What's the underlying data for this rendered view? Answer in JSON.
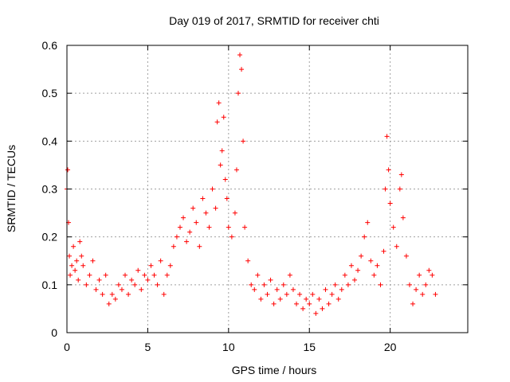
{
  "chart_data": {
    "type": "scatter",
    "title": "Day 019 of 2017, SRMTID for receiver chti",
    "xlabel": "GPS time / hours",
    "ylabel": "SRMTID / TECUs",
    "xlim": [
      0,
      24.8
    ],
    "ylim": [
      0,
      0.6
    ],
    "xticks": [
      0,
      5,
      10,
      15,
      20
    ],
    "xtick_labels": [
      "0",
      "5",
      "10",
      "15",
      "20"
    ],
    "yticks": [
      0,
      0.1,
      0.2,
      0.3,
      0.4,
      0.5,
      0.6
    ],
    "ytick_labels": [
      "0",
      "0.1",
      "0.2",
      "0.3",
      "0.4",
      "0.5",
      "0.6"
    ],
    "grid": true,
    "marker": "+",
    "color": "#ff0000",
    "series": [
      {
        "name": "SRMTID",
        "x": [
          0.0,
          0.05,
          0.1,
          0.15,
          0.2,
          0.3,
          0.4,
          0.5,
          0.6,
          0.7,
          0.8,
          0.9,
          1.0,
          1.2,
          1.4,
          1.6,
          1.8,
          2.0,
          2.2,
          2.4,
          2.6,
          2.8,
          3.0,
          3.2,
          3.4,
          3.6,
          3.8,
          4.0,
          4.2,
          4.4,
          4.6,
          4.8,
          5.0,
          5.2,
          5.4,
          5.6,
          5.8,
          6.0,
          6.2,
          6.4,
          6.6,
          6.8,
          7.0,
          7.2,
          7.4,
          7.6,
          7.8,
          8.0,
          8.2,
          8.4,
          8.6,
          8.8,
          9.0,
          9.2,
          9.3,
          9.4,
          9.5,
          9.6,
          9.7,
          9.8,
          9.9,
          10.0,
          10.2,
          10.4,
          10.5,
          10.6,
          10.7,
          10.8,
          10.9,
          11.0,
          11.2,
          11.4,
          11.6,
          11.8,
          12.0,
          12.2,
          12.4,
          12.6,
          12.8,
          13.0,
          13.2,
          13.4,
          13.6,
          13.8,
          14.0,
          14.2,
          14.4,
          14.6,
          14.8,
          15.0,
          15.2,
          15.4,
          15.6,
          15.8,
          16.0,
          16.2,
          16.4,
          16.6,
          16.8,
          17.0,
          17.2,
          17.4,
          17.6,
          17.8,
          18.0,
          18.2,
          18.4,
          18.6,
          18.8,
          19.0,
          19.2,
          19.4,
          19.6,
          19.7,
          19.8,
          19.9,
          20.0,
          20.2,
          20.4,
          20.6,
          20.7,
          20.8,
          21.0,
          21.2,
          21.4,
          21.6,
          21.8,
          22.0,
          22.2,
          22.4,
          22.6,
          22.8
        ],
        "y": [
          0.3,
          0.34,
          0.23,
          0.16,
          0.12,
          0.14,
          0.18,
          0.13,
          0.15,
          0.11,
          0.19,
          0.16,
          0.14,
          0.1,
          0.12,
          0.15,
          0.09,
          0.11,
          0.08,
          0.12,
          0.06,
          0.08,
          0.07,
          0.1,
          0.09,
          0.12,
          0.08,
          0.11,
          0.1,
          0.13,
          0.09,
          0.12,
          0.11,
          0.14,
          0.12,
          0.1,
          0.15,
          0.08,
          0.12,
          0.14,
          0.18,
          0.2,
          0.22,
          0.24,
          0.19,
          0.21,
          0.26,
          0.23,
          0.18,
          0.28,
          0.25,
          0.22,
          0.3,
          0.26,
          0.44,
          0.48,
          0.35,
          0.38,
          0.45,
          0.32,
          0.28,
          0.22,
          0.2,
          0.25,
          0.34,
          0.5,
          0.58,
          0.55,
          0.4,
          0.22,
          0.15,
          0.1,
          0.09,
          0.12,
          0.07,
          0.1,
          0.08,
          0.11,
          0.06,
          0.09,
          0.07,
          0.1,
          0.08,
          0.12,
          0.09,
          0.06,
          0.08,
          0.05,
          0.07,
          0.06,
          0.08,
          0.04,
          0.07,
          0.05,
          0.09,
          0.06,
          0.08,
          0.1,
          0.07,
          0.09,
          0.12,
          0.1,
          0.14,
          0.11,
          0.13,
          0.16,
          0.2,
          0.23,
          0.15,
          0.12,
          0.14,
          0.1,
          0.17,
          0.3,
          0.41,
          0.34,
          0.27,
          0.22,
          0.18,
          0.3,
          0.33,
          0.24,
          0.16,
          0.1,
          0.06,
          0.09,
          0.12,
          0.08,
          0.1,
          0.13,
          0.12,
          0.08
        ]
      }
    ]
  }
}
